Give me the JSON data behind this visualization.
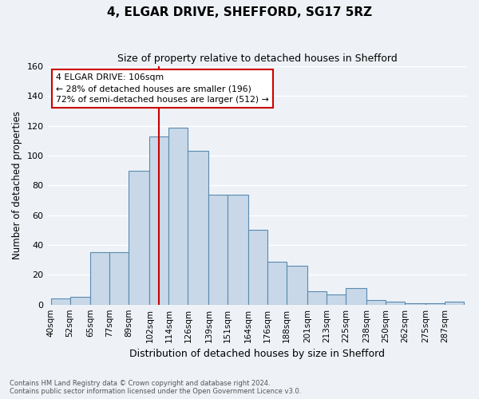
{
  "title1": "4, ELGAR DRIVE, SHEFFORD, SG17 5RZ",
  "title2": "Size of property relative to detached houses in Shefford",
  "xlabel": "Distribution of detached houses by size in Shefford",
  "ylabel": "Number of detached properties",
  "categories": [
    "40sqm",
    "52sqm",
    "65sqm",
    "77sqm",
    "89sqm",
    "102sqm",
    "114sqm",
    "126sqm",
    "139sqm",
    "151sqm",
    "164sqm",
    "176sqm",
    "188sqm",
    "201sqm",
    "213sqm",
    "225sqm",
    "238sqm",
    "250sqm",
    "262sqm",
    "275sqm",
    "287sqm"
  ],
  "values": [
    4,
    5,
    35,
    35,
    90,
    113,
    119,
    103,
    74,
    74,
    50,
    29,
    26,
    9,
    7,
    11,
    3,
    2,
    1,
    1,
    2
  ],
  "bar_color": "#c8d8e8",
  "bar_edge_color": "#5a8ab0",
  "bin_edges": [
    40,
    52,
    65,
    77,
    89,
    102,
    114,
    126,
    139,
    151,
    164,
    176,
    188,
    201,
    213,
    225,
    238,
    250,
    262,
    275,
    287,
    299
  ],
  "vline_x": 108,
  "vline_color": "#cc0000",
  "annotation_text1": "4 ELGAR DRIVE: 106sqm",
  "annotation_text2": "← 28% of detached houses are smaller (196)",
  "annotation_text3": "72% of semi-detached houses are larger (512) →",
  "annotation_box_color": "#ffffff",
  "annotation_box_edge": "#cc0000",
  "bg_color": "#eef2f7",
  "grid_color": "#ffffff",
  "footer1": "Contains HM Land Registry data © Crown copyright and database right 2024.",
  "footer2": "Contains public sector information licensed under the Open Government Licence v3.0.",
  "ylim": [
    0,
    160
  ],
  "yticks": [
    0,
    20,
    40,
    60,
    80,
    100,
    120,
    140,
    160
  ],
  "figwidth": 6.0,
  "figheight": 5.0,
  "dpi": 100
}
